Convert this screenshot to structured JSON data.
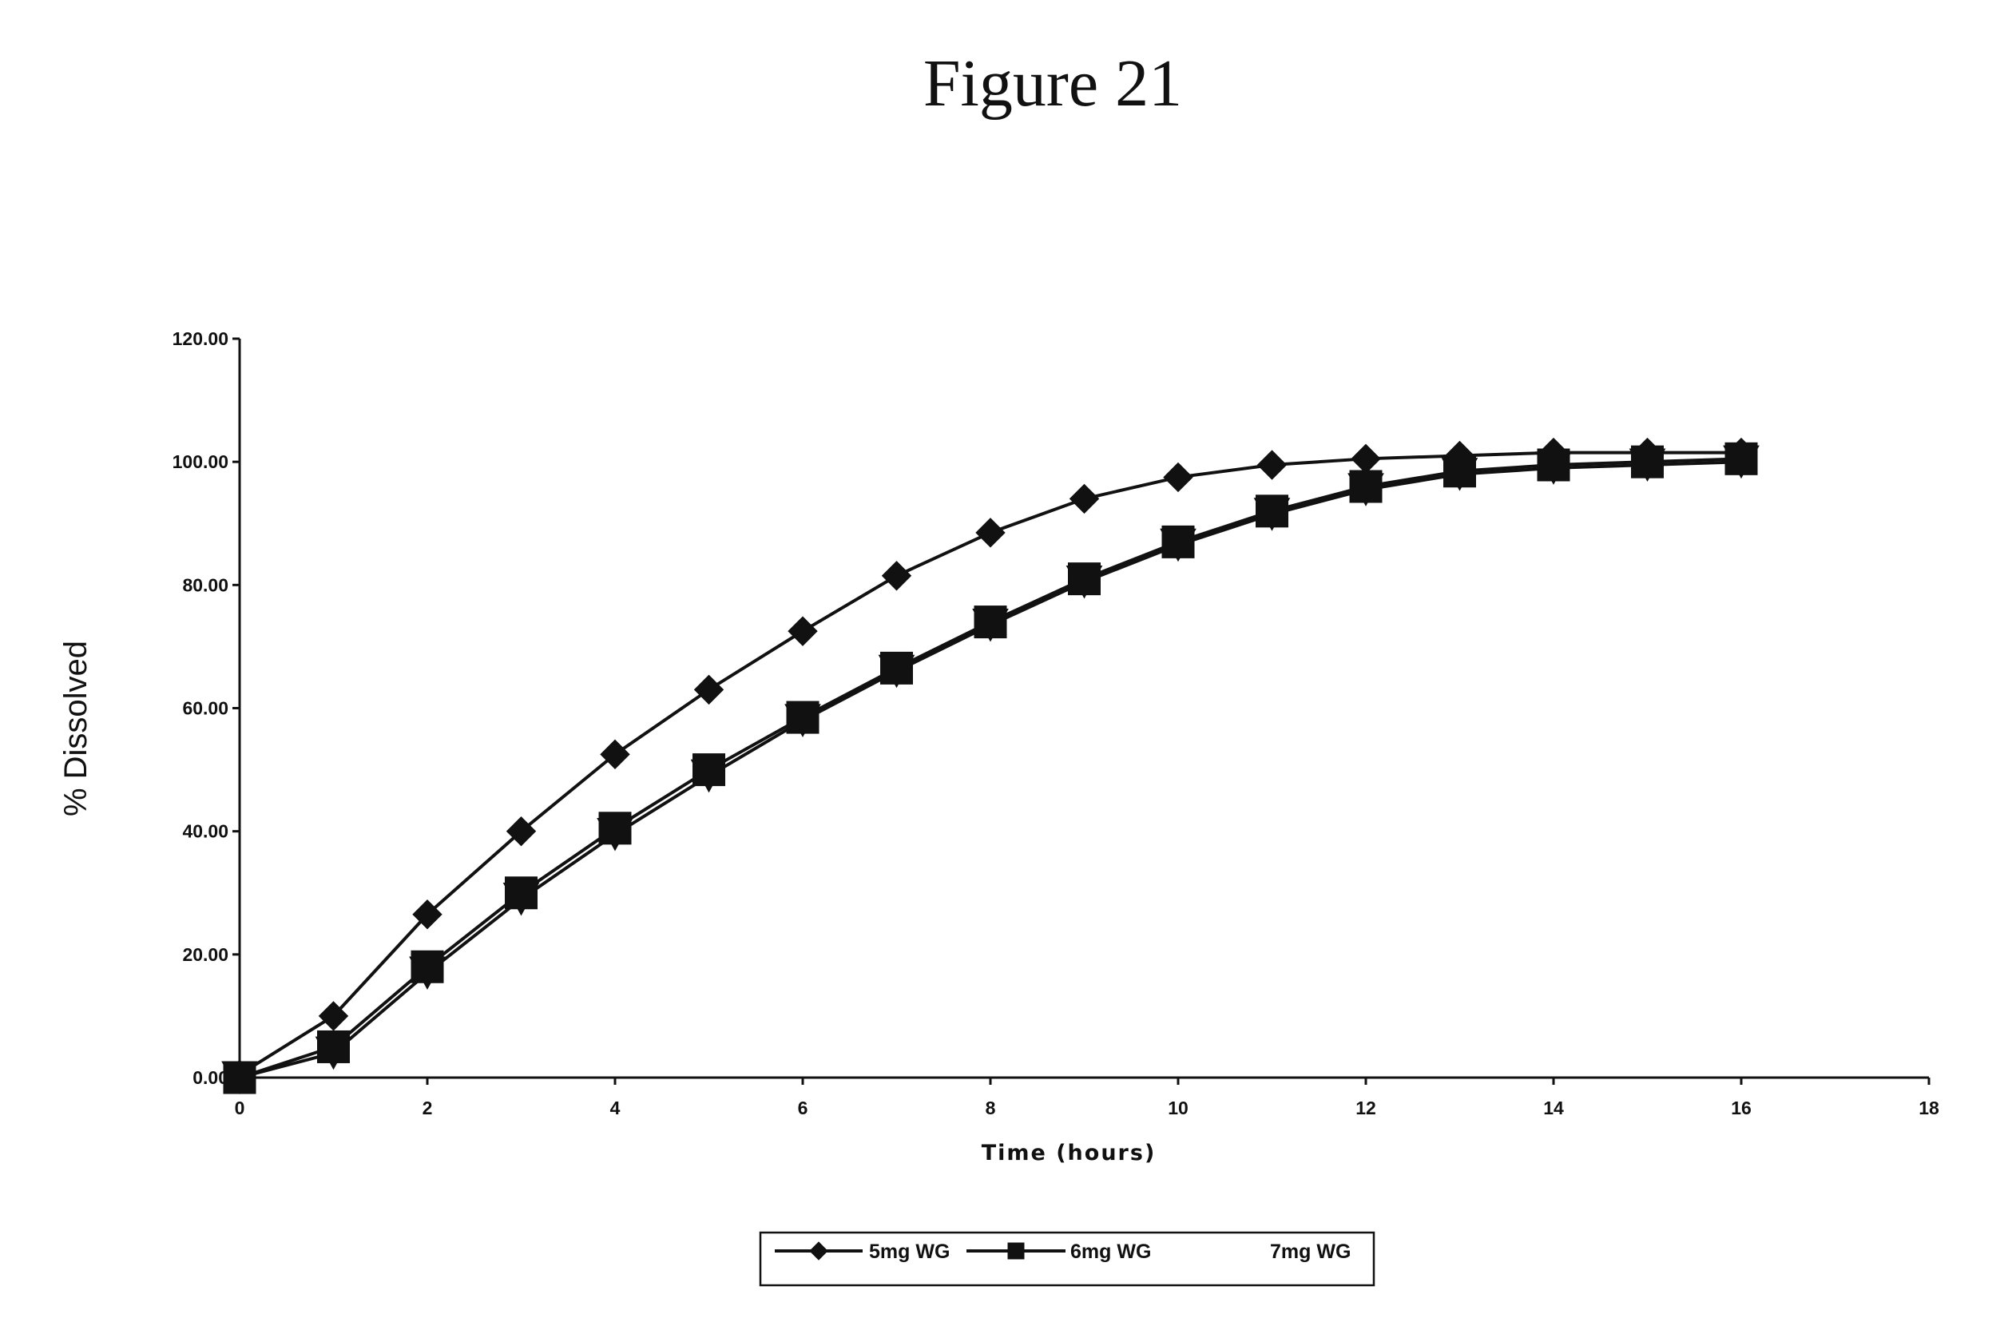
{
  "figure_title": "Figure 21",
  "chart_data": {
    "type": "line",
    "title": "",
    "xlabel": "Time (hours)",
    "ylabel": "% Dissolved",
    "xlim": [
      0,
      18
    ],
    "ylim": [
      0,
      120
    ],
    "x_ticks": [
      "0",
      "2",
      "4",
      "6",
      "8",
      "10",
      "12",
      "14",
      "16",
      "18"
    ],
    "y_ticks": [
      "0.00",
      "20.00",
      "40.00",
      "60.00",
      "80.00",
      "100.00",
      "120.00"
    ],
    "legend_position": "bottom",
    "series": [
      {
        "name": "5mg WG",
        "marker": "diamond",
        "x": [
          0,
          1,
          2,
          3,
          4,
          5,
          6,
          7,
          8,
          9,
          10,
          11,
          12,
          13,
          14,
          15,
          16
        ],
        "values": [
          0.5,
          10.0,
          26.5,
          40.0,
          52.5,
          63.0,
          72.5,
          81.5,
          88.5,
          94.0,
          97.5,
          99.5,
          100.5,
          101.0,
          101.5,
          101.5,
          101.5
        ]
      },
      {
        "name": "6mg WG",
        "marker": "square",
        "x": [
          0,
          1,
          2,
          3,
          4,
          5,
          6,
          7,
          8,
          9,
          10,
          11,
          12,
          13,
          14,
          15,
          16
        ],
        "values": [
          0.0,
          5.0,
          18.0,
          30.0,
          40.5,
          50.0,
          58.5,
          66.5,
          74.0,
          81.0,
          87.0,
          92.0,
          96.0,
          98.5,
          99.5,
          100.0,
          100.5
        ]
      },
      {
        "name": "7mg WG",
        "marker": "triangle-down",
        "x": [
          0,
          1,
          2,
          3,
          4,
          5,
          6,
          7,
          8,
          9,
          10,
          11,
          12,
          13,
          14,
          15,
          16
        ],
        "values": [
          0.0,
          4.0,
          17.0,
          29.0,
          39.5,
          49.0,
          58.0,
          66.0,
          73.5,
          80.5,
          86.5,
          91.5,
          95.5,
          98.0,
          99.0,
          99.5,
          100.0
        ]
      }
    ]
  }
}
